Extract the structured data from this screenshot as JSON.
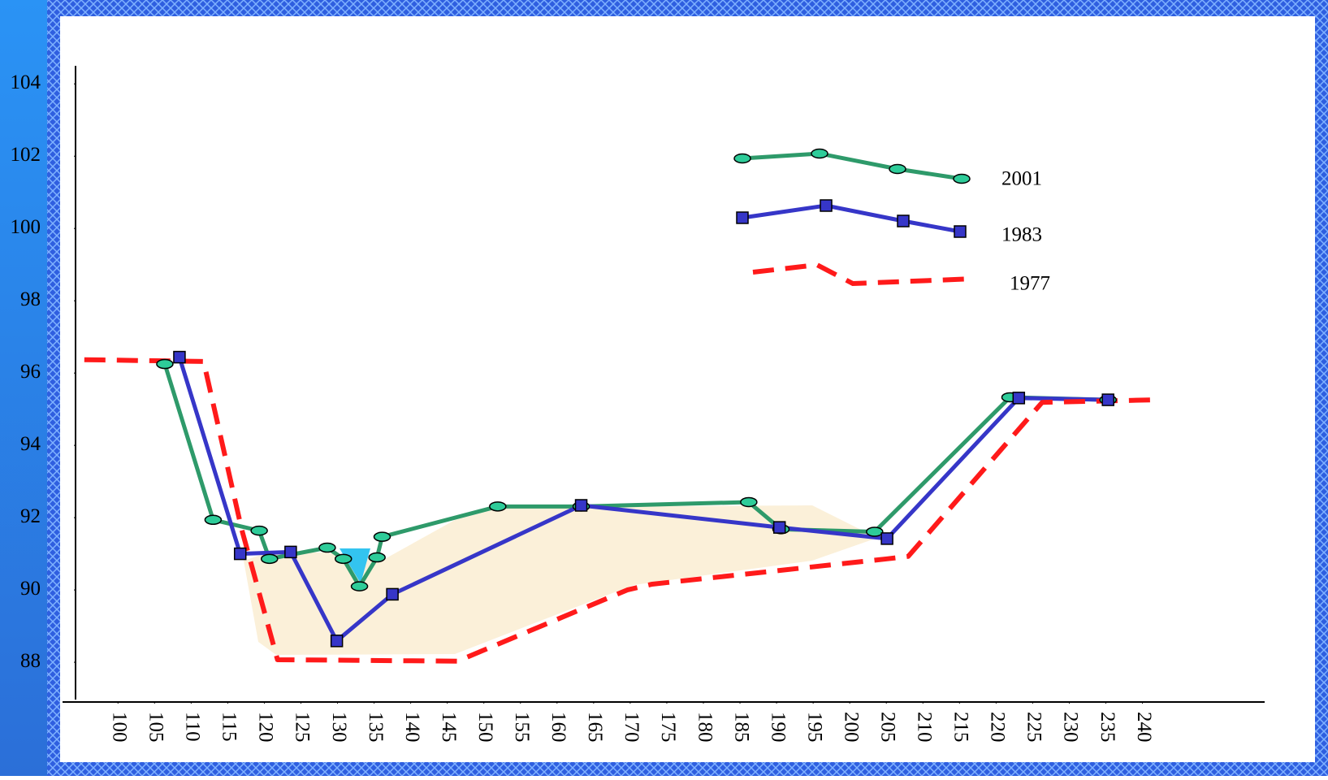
{
  "chart_data": {
    "type": "line",
    "xlim": [
      94.2,
      256.7
    ],
    "ylim": [
      86.9,
      104.5
    ],
    "xticks": [
      100,
      105,
      110,
      115,
      120,
      125,
      130,
      135,
      140,
      145,
      150,
      155,
      160,
      165,
      170,
      175,
      180,
      185,
      190,
      195,
      200,
      205,
      210,
      215,
      220,
      225,
      230,
      235,
      240
    ],
    "yticks": [
      88,
      90,
      92,
      94,
      96,
      98,
      100,
      102,
      104
    ],
    "series": [
      {
        "name": "2001",
        "color": "#2e9a6a",
        "marker": "ellipse",
        "dashed": false,
        "x": [
          106.4,
          113,
          119.3,
          120.7,
          128.6,
          130.8,
          133,
          135.4,
          136.1,
          151.9,
          163.3,
          186.2,
          190.6,
          203.4,
          221.9,
          235.3
        ],
        "values": [
          96.25,
          91.94,
          91.64,
          90.86,
          91.17,
          90.86,
          90.1,
          90.9,
          91.47,
          92.31,
          92.31,
          92.43,
          91.68,
          91.61,
          95.33,
          95.26
        ]
      },
      {
        "name": "1983",
        "color": "#3636c8",
        "marker": "square",
        "dashed": false,
        "x": [
          108.4,
          116.7,
          123.6,
          129.9,
          137.5,
          163.3,
          190.4,
          205.1,
          223.1,
          235.3
        ],
        "values": [
          96.44,
          91.0,
          91.05,
          88.59,
          89.88,
          92.34,
          91.73,
          91.42,
          95.31,
          95.26
        ]
      },
      {
        "name": "1977",
        "color": "#ff1a1a",
        "marker": "none",
        "dashed": true,
        "x": [
          95.4,
          111.7,
          116.9,
          121.8,
          146.4,
          169.6,
          173,
          205.1,
          208,
          226.3,
          241.9
        ],
        "values": [
          96.37,
          96.32,
          91.68,
          88.07,
          88.03,
          90.0,
          90.16,
          90.86,
          90.93,
          95.19,
          95.26
        ]
      }
    ]
  }
}
